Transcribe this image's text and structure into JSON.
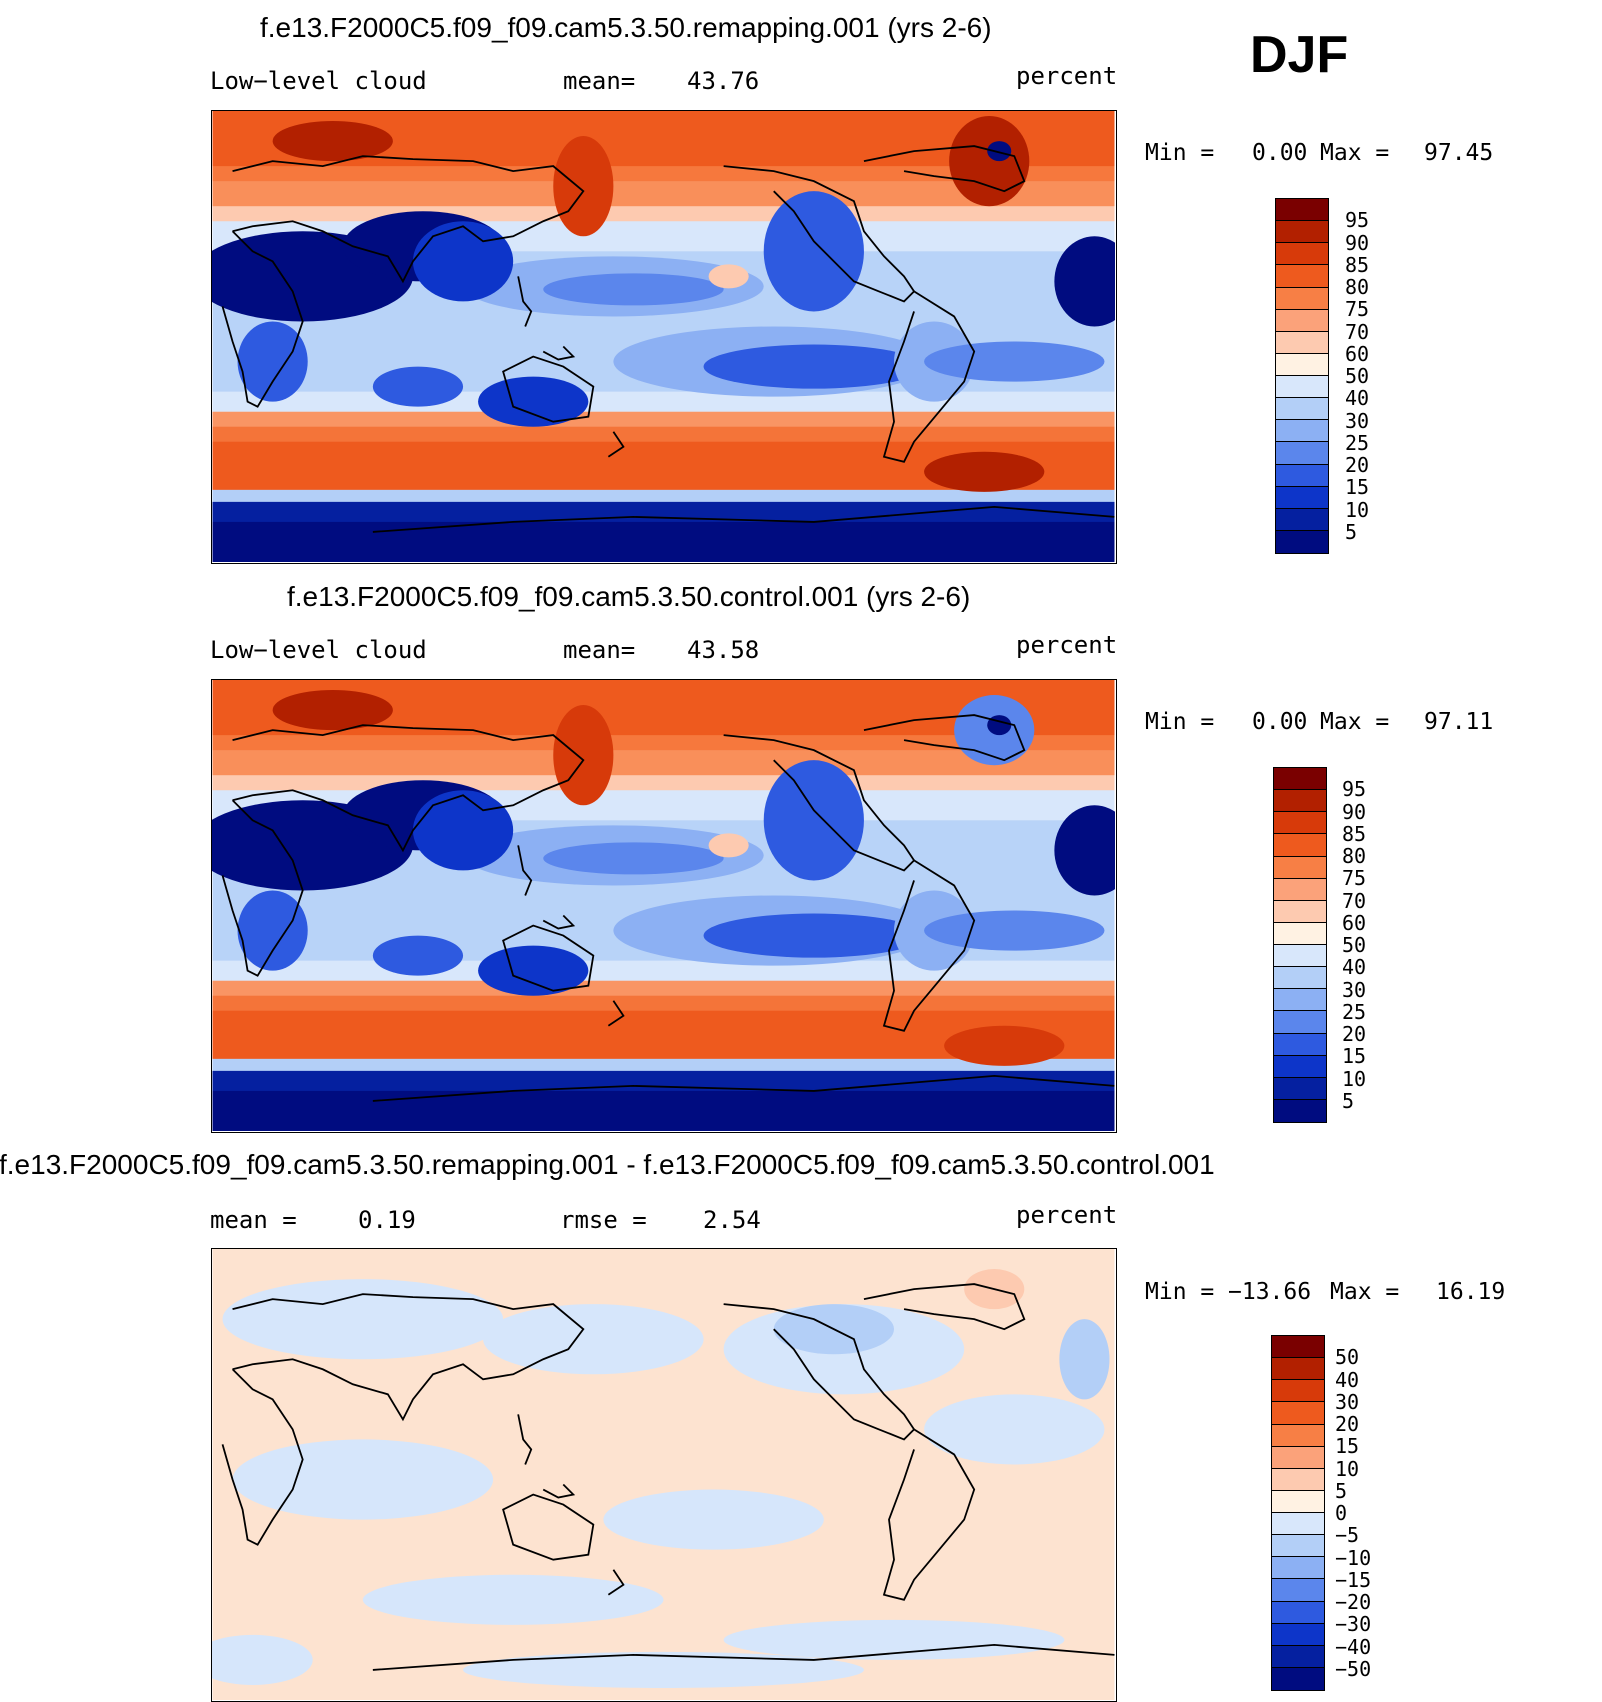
{
  "season": "DJF",
  "panels": [
    {
      "title": "f.e13.F2000C5.f09_f09.cam5.3.50.remapping.001 (yrs 2-6)",
      "left_label": "Low−level cloud",
      "mid_label": "mean=",
      "mid_value": "43.76",
      "units": "percent",
      "min_label": "Min =",
      "min_value": "0.00",
      "max_label": "Max =",
      "max_value": "97.45",
      "colorbar_labels": [
        "95",
        "90",
        "85",
        "80",
        "75",
        "70",
        "60",
        "50",
        "40",
        "30",
        "25",
        "20",
        "15",
        "10",
        "5"
      ]
    },
    {
      "title": "f.e13.F2000C5.f09_f09.cam5.3.50.control.001 (yrs 2-6)",
      "left_label": "Low−level cloud",
      "mid_label": "mean=",
      "mid_value": "43.58",
      "units": "percent",
      "min_label": "Min =",
      "min_value": "0.00",
      "max_label": "Max =",
      "max_value": "97.11",
      "colorbar_labels": [
        "95",
        "90",
        "85",
        "80",
        "75",
        "70",
        "60",
        "50",
        "40",
        "30",
        "25",
        "20",
        "15",
        "10",
        "5"
      ]
    },
    {
      "title": "f.e13.F2000C5.f09_f09.cam5.3.50.remapping.001 - f.e13.F2000C5.f09_f09.cam5.3.50.control.001",
      "left_label": "mean =",
      "left_value": "0.19",
      "mid_label": "rmse =",
      "mid_value": "2.54",
      "units": "percent",
      "min_label": "Min =",
      "min_value": "−13.66",
      "max_label": "Max =",
      "max_value": "16.19",
      "colorbar_labels": [
        "50",
        "40",
        "30",
        "20",
        "15",
        "10",
        "5",
        "0",
        "−5",
        "−10",
        "−15",
        "−20",
        "−30",
        "−40",
        "−50"
      ]
    }
  ],
  "colors": {
    "scale": [
      "#7a0000",
      "#b22000",
      "#d73a0a",
      "#ee5a1e",
      "#f77f45",
      "#fba27a",
      "#fdcab0",
      "#fff2e3",
      "#d8e7fb",
      "#b3cff7",
      "#8cb0f3",
      "#5b86ec",
      "#2e5ae0",
      "#0d35c9",
      "#0520a0",
      "#000c80"
    ],
    "diff_base": "#fde3d0",
    "diff_neg": "#d6e6fb"
  }
}
